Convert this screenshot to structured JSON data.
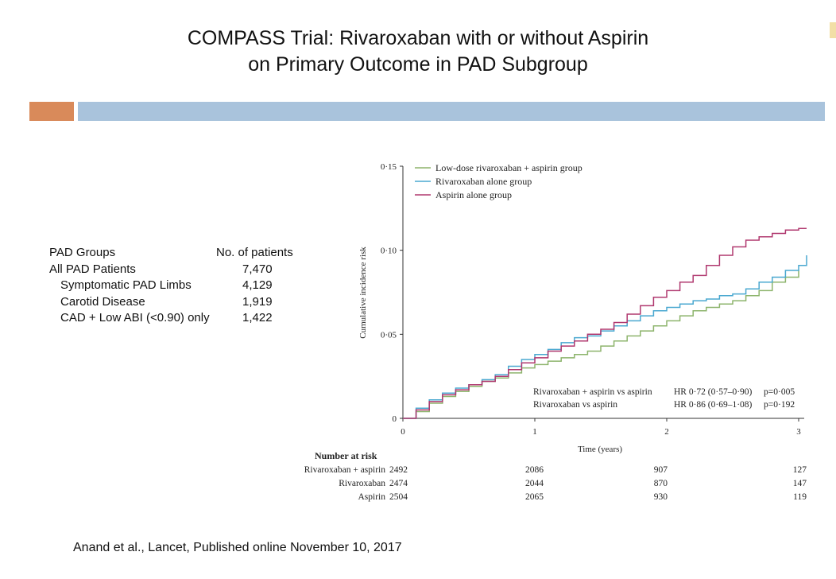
{
  "slide": {
    "title_line1": "COMPASS Trial: Rivaroxaban with or without Aspirin",
    "title_line2": "on Primary Outcome in PAD Subgroup",
    "citation": "Anand et al., Lancet, Published online November 10, 2017",
    "colors": {
      "accent_orange": "#D98A5A",
      "accent_blue": "#A9C3DC",
      "corner_mark": "#F2DFA6"
    }
  },
  "pad_table": {
    "header": {
      "label": "PAD Groups",
      "value": "No. of patients"
    },
    "rows": [
      {
        "label": "All PAD Patients",
        "value": "7,470"
      },
      {
        "label": "Symptomatic PAD Limbs",
        "value": "4,129"
      },
      {
        "label": "Carotid Disease",
        "value": "1,919"
      },
      {
        "label": "CAD + Low ABI (<0.90) only",
        "value": "1,422"
      }
    ]
  },
  "chart_data": {
    "type": "line",
    "ylabel": "Cumulative incidence risk",
    "xlabel": "Time (years)",
    "xlim": [
      0,
      3
    ],
    "ylim": [
      0,
      0.15
    ],
    "x_ticks": [
      "0",
      "1",
      "2",
      "3"
    ],
    "y_ticks": [
      "0",
      "0·05",
      "0·10",
      "0·15"
    ],
    "legend_position": "top-left",
    "series": [
      {
        "name": "Low-dose rivaroxaban + aspirin group",
        "color": "#8DB46C",
        "points": [
          [
            0,
            0
          ],
          [
            0.1,
            0.004
          ],
          [
            0.2,
            0.009
          ],
          [
            0.3,
            0.013
          ],
          [
            0.4,
            0.016
          ],
          [
            0.5,
            0.019
          ],
          [
            0.6,
            0.022
          ],
          [
            0.7,
            0.024
          ],
          [
            0.8,
            0.027
          ],
          [
            0.9,
            0.03
          ],
          [
            1.0,
            0.032
          ],
          [
            1.1,
            0.034
          ],
          [
            1.2,
            0.036
          ],
          [
            1.3,
            0.038
          ],
          [
            1.4,
            0.04
          ],
          [
            1.5,
            0.043
          ],
          [
            1.6,
            0.046
          ],
          [
            1.7,
            0.049
          ],
          [
            1.8,
            0.052
          ],
          [
            1.9,
            0.055
          ],
          [
            2.0,
            0.058
          ],
          [
            2.1,
            0.061
          ],
          [
            2.2,
            0.064
          ],
          [
            2.3,
            0.066
          ],
          [
            2.4,
            0.068
          ],
          [
            2.5,
            0.07
          ],
          [
            2.6,
            0.073
          ],
          [
            2.7,
            0.076
          ],
          [
            2.8,
            0.081
          ],
          [
            2.9,
            0.084
          ],
          [
            3.0,
            0.088
          ]
        ]
      },
      {
        "name": "Rivaroxaban alone group",
        "color": "#4AA8D0",
        "points": [
          [
            0,
            0
          ],
          [
            0.1,
            0.006
          ],
          [
            0.2,
            0.011
          ],
          [
            0.3,
            0.015
          ],
          [
            0.4,
            0.018
          ],
          [
            0.5,
            0.02
          ],
          [
            0.6,
            0.023
          ],
          [
            0.7,
            0.026
          ],
          [
            0.8,
            0.031
          ],
          [
            0.9,
            0.035
          ],
          [
            1.0,
            0.038
          ],
          [
            1.1,
            0.041
          ],
          [
            1.2,
            0.045
          ],
          [
            1.3,
            0.048
          ],
          [
            1.4,
            0.049
          ],
          [
            1.5,
            0.052
          ],
          [
            1.6,
            0.055
          ],
          [
            1.7,
            0.058
          ],
          [
            1.8,
            0.061
          ],
          [
            1.9,
            0.064
          ],
          [
            2.0,
            0.066
          ],
          [
            2.1,
            0.068
          ],
          [
            2.2,
            0.07
          ],
          [
            2.3,
            0.071
          ],
          [
            2.4,
            0.073
          ],
          [
            2.5,
            0.074
          ],
          [
            2.6,
            0.077
          ],
          [
            2.7,
            0.081
          ],
          [
            2.8,
            0.084
          ],
          [
            2.9,
            0.088
          ],
          [
            3.0,
            0.091
          ],
          [
            3.06,
            0.097
          ]
        ]
      },
      {
        "name": "Aspirin alone group",
        "color": "#B0386F",
        "points": [
          [
            0,
            0
          ],
          [
            0.1,
            0.005
          ],
          [
            0.2,
            0.01
          ],
          [
            0.3,
            0.014
          ],
          [
            0.4,
            0.017
          ],
          [
            0.5,
            0.02
          ],
          [
            0.6,
            0.022
          ],
          [
            0.7,
            0.025
          ],
          [
            0.8,
            0.029
          ],
          [
            0.9,
            0.033
          ],
          [
            1.0,
            0.036
          ],
          [
            1.1,
            0.04
          ],
          [
            1.2,
            0.043
          ],
          [
            1.3,
            0.046
          ],
          [
            1.4,
            0.05
          ],
          [
            1.5,
            0.053
          ],
          [
            1.6,
            0.057
          ],
          [
            1.7,
            0.062
          ],
          [
            1.8,
            0.067
          ],
          [
            1.9,
            0.072
          ],
          [
            2.0,
            0.076
          ],
          [
            2.1,
            0.081
          ],
          [
            2.2,
            0.085
          ],
          [
            2.3,
            0.091
          ],
          [
            2.4,
            0.097
          ],
          [
            2.5,
            0.102
          ],
          [
            2.6,
            0.106
          ],
          [
            2.7,
            0.108
          ],
          [
            2.8,
            0.11
          ],
          [
            2.9,
            0.112
          ],
          [
            3.0,
            0.113
          ],
          [
            3.06,
            0.113
          ]
        ]
      }
    ],
    "hr_annotations": [
      {
        "comparison": "Rivaroxaban + aspirin vs aspirin",
        "hr": "HR 0·72 (0·57–0·90)",
        "p": "p=0·005"
      },
      {
        "comparison": "Rivaroxaban vs aspirin",
        "hr": "HR 0·86 (0·69–1·08)",
        "p": "p=0·192"
      }
    ],
    "number_at_risk": {
      "title": "Number at risk",
      "rows": [
        {
          "label": "Rivaroxaban + aspirin",
          "values": [
            "2492",
            "2086",
            "907",
            "127"
          ]
        },
        {
          "label": "Rivaroxaban",
          "values": [
            "2474",
            "2044",
            "870",
            "147"
          ]
        },
        {
          "label": "Aspirin",
          "values": [
            "2504",
            "2065",
            "930",
            "119"
          ]
        }
      ]
    }
  }
}
